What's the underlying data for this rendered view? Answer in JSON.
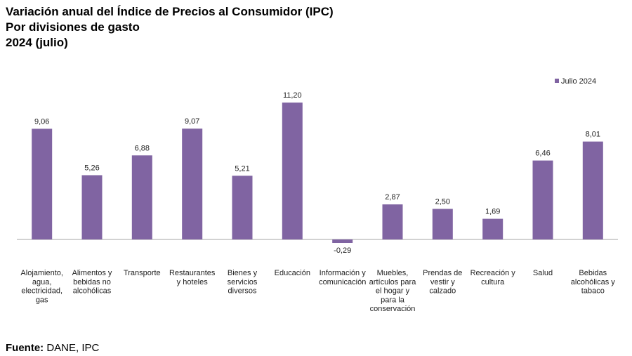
{
  "header": {
    "title_line1": "Variación anual del Índice de Precios al Consumidor (IPC)",
    "title_line2": "Por divisiones de gasto",
    "title_line3": "2024 (julio)"
  },
  "footer": {
    "source_label": "Fuente:",
    "source_text": "DANE, IPC"
  },
  "colors": {
    "bar": "#8064A2",
    "axis": "#a6a6a6"
  },
  "chart_data": {
    "type": "bar",
    "categories": [
      "Alojamiento, agua, electricidad, gas",
      "Alimentos y bebidas no alcohólicas",
      "Transporte",
      "Restaurantes y hoteles",
      "Bienes y servicios diversos",
      "Educación",
      "Información y comunicación",
      "Muebles, artículos para el hogar y para la conservación",
      "Prendas de vestir y calzado",
      "Recreación y cultura",
      "Salud",
      "Bebidas alcohólicas y tabaco"
    ],
    "category_lines": [
      [
        "Alojamiento,",
        "agua,",
        "electricidad,",
        "gas"
      ],
      [
        "Alimentos y",
        "bebidas no",
        "alcohólicas"
      ],
      [
        "Transporte"
      ],
      [
        "Restaurantes",
        "y hoteles"
      ],
      [
        "Bienes y",
        "servicios",
        "diversos"
      ],
      [
        "Educación"
      ],
      [
        "Información y",
        "comunicación"
      ],
      [
        "Muebles,",
        "artículos para",
        "el hogar y",
        "para la",
        "conservación"
      ],
      [
        "Prendas de",
        "vestir y",
        "calzado"
      ],
      [
        "Recreación y",
        "cultura"
      ],
      [
        "Salud"
      ],
      [
        "Bebidas",
        "alcohólicas y",
        "tabaco"
      ]
    ],
    "series": [
      {
        "name": "Julio 2024",
        "values": [
          9.06,
          5.26,
          6.88,
          9.07,
          5.21,
          11.2,
          -0.29,
          2.87,
          2.5,
          1.69,
          6.46,
          8.01
        ],
        "value_labels": [
          "9,06",
          "5,26",
          "6,88",
          "9,07",
          "5,21",
          "11,20",
          "-0,29",
          "2,87",
          "2,50",
          "1,69",
          "6,46",
          "8,01"
        ]
      }
    ],
    "legend_position": "top-right",
    "grid": false
  }
}
